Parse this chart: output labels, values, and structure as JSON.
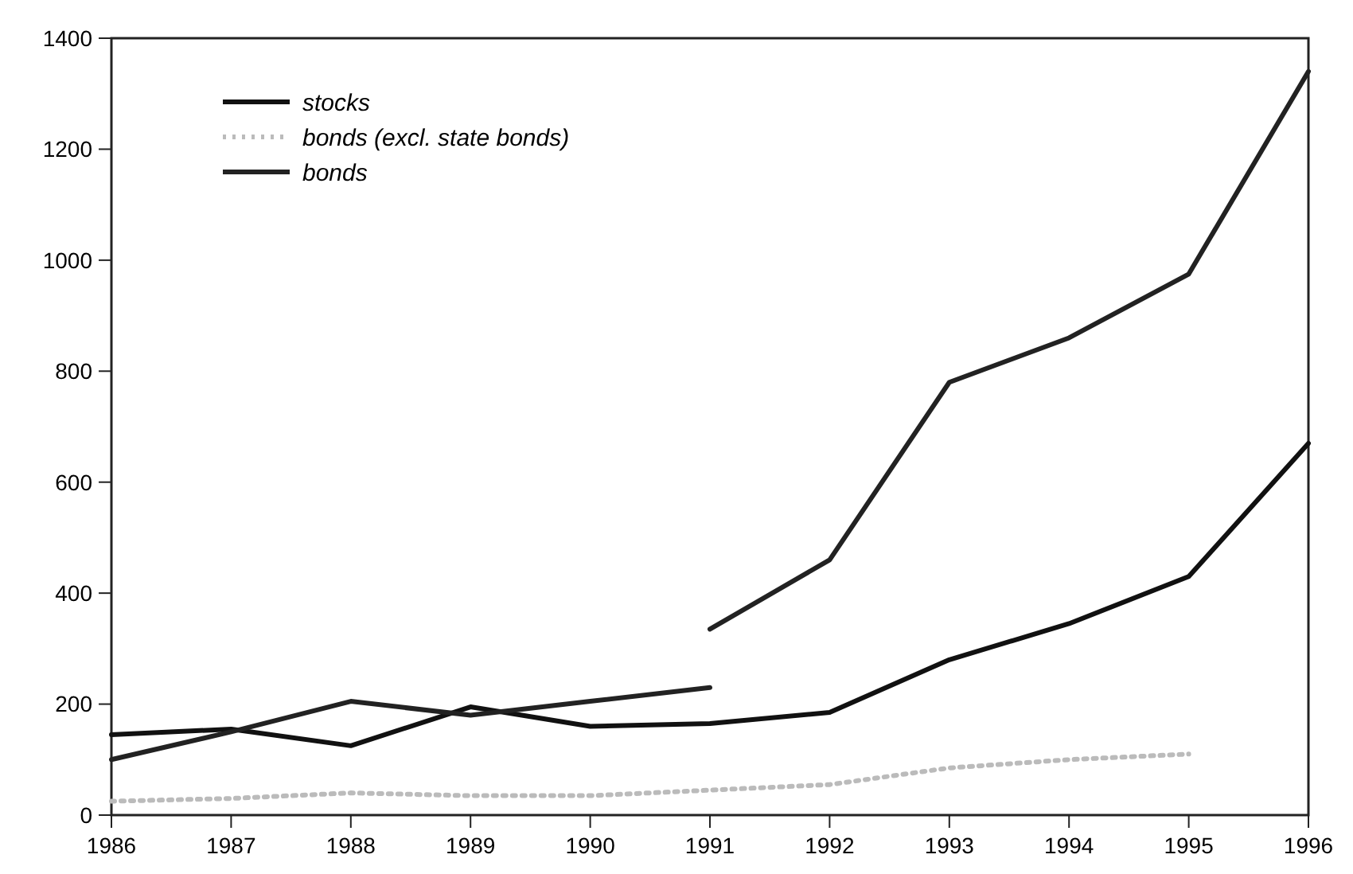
{
  "chart_data": {
    "type": "line",
    "x": [
      1986,
      1987,
      1988,
      1989,
      1990,
      1991,
      1992,
      1993,
      1994,
      1995,
      1996
    ],
    "series": [
      {
        "name": "stocks",
        "color": "#111111",
        "values": [
          145,
          155,
          125,
          195,
          160,
          165,
          185,
          280,
          345,
          430,
          670
        ]
      },
      {
        "name": "bonds (excl. state bonds)",
        "color": "#bbbbbb",
        "line_style": "dotted",
        "values": [
          25,
          30,
          40,
          35,
          35,
          45,
          55,
          85,
          100,
          110,
          null
        ]
      },
      {
        "name": "bonds",
        "color": "#222222",
        "values": [
          100,
          150,
          205,
          180,
          205,
          230,
          null,
          null,
          null,
          null,
          null
        ]
      },
      {
        "color": "#222222",
        "values": [
          null,
          null,
          null,
          null,
          null,
          335,
          460,
          780,
          860,
          975,
          1340
        ]
      }
    ],
    "xlim": [
      1986,
      1996
    ],
    "xticks": [
      1986,
      1987,
      1988,
      1989,
      1990,
      1991,
      1992,
      1993,
      1994,
      1995,
      1996
    ],
    "ylim": [
      0,
      1400
    ],
    "yticks": [
      0,
      200,
      400,
      600,
      800,
      1000,
      1200,
      1400
    ],
    "grid": false,
    "legend": "top left",
    "line_style": "solid",
    "marker": "none"
  }
}
